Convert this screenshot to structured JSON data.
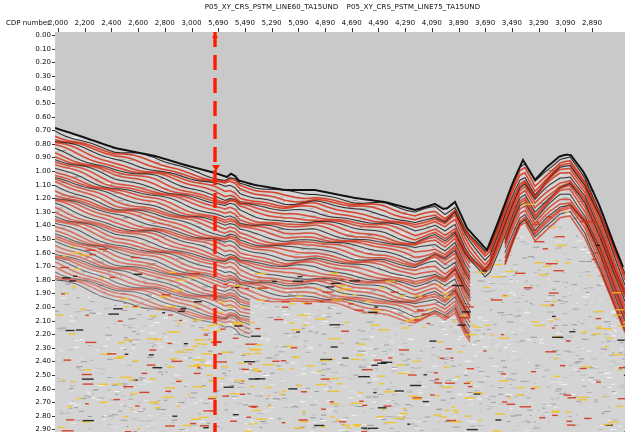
{
  "title": {
    "line_left": "P05_XY_CRS_PSTM_LINE60_TA15UND",
    "line_right": "P05_XY_CRS_PSTM_LINE75_TA15UND"
  },
  "axis": {
    "x_label": "CDP number",
    "x_ticks": [
      "2,000",
      "2,200",
      "2,400",
      "2,600",
      "2,800",
      "3,000",
      "5,690",
      "5,490",
      "5,290",
      "5,090",
      "4,890",
      "4,690",
      "4,490",
      "4,290",
      "4,090",
      "3,890",
      "3,690",
      "3,490",
      "3,290",
      "3,090",
      "2,890"
    ],
    "y_ticks": [
      "0.00",
      "0.10",
      "0.20",
      "0.30",
      "0.40",
      "0.50",
      "0.60",
      "0.70",
      "0.80",
      "0.90",
      "1.00",
      "1.10",
      "1.20",
      "1.30",
      "1.40",
      "1.50",
      "1.60",
      "1.70",
      "1.80",
      "1.90",
      "2.00",
      "2.10",
      "2.20",
      "2.30",
      "2.40",
      "2.50",
      "2.60",
      "2.70",
      "2.80",
      "2.90"
    ]
  },
  "colors": {
    "water": "#c9c9c9",
    "background_noise": "#d4d4d4",
    "reflector_red": "#d42a10",
    "reflector_black": "#111111",
    "reflector_yellow": "#f2c21a",
    "splice_marker": "#ff1a00"
  },
  "marker": {
    "icon": "dashed-vertical-splice-line"
  }
}
